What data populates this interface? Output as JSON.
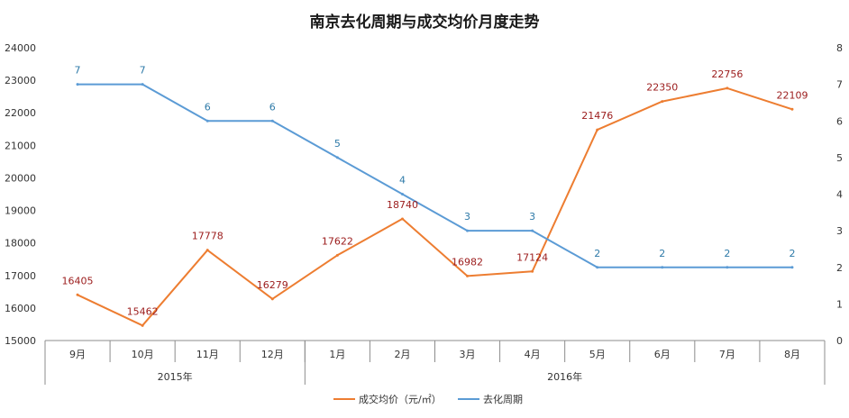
{
  "chart_data": {
    "type": "line",
    "title": "南京去化周期与成交均价月度走势",
    "categories": [
      "9月",
      "10月",
      "11月",
      "12月",
      "1月",
      "2月",
      "3月",
      "4月",
      "5月",
      "6月",
      "7月",
      "8月"
    ],
    "year_groups": [
      {
        "label": "2015年",
        "count": 4
      },
      {
        "label": "2016年",
        "count": 8
      }
    ],
    "series": [
      {
        "name": "成交均价（元/㎡）",
        "axis": "left",
        "color": "#ed7d31",
        "values": [
          16405,
          15462,
          17778,
          16279,
          17622,
          18740,
          16982,
          17124,
          21476,
          22350,
          22756,
          22109
        ]
      },
      {
        "name": "去化周期",
        "axis": "right",
        "color": "#5b9bd5",
        "values": [
          7,
          7,
          6,
          6,
          5,
          4,
          3,
          3,
          2,
          2,
          2,
          2
        ]
      }
    ],
    "y_left": {
      "min": 15000,
      "max": 24000,
      "step": 1000
    },
    "y_right": {
      "min": 0,
      "max": 8,
      "step": 1
    },
    "grid": false,
    "legend_position": "bottom"
  }
}
